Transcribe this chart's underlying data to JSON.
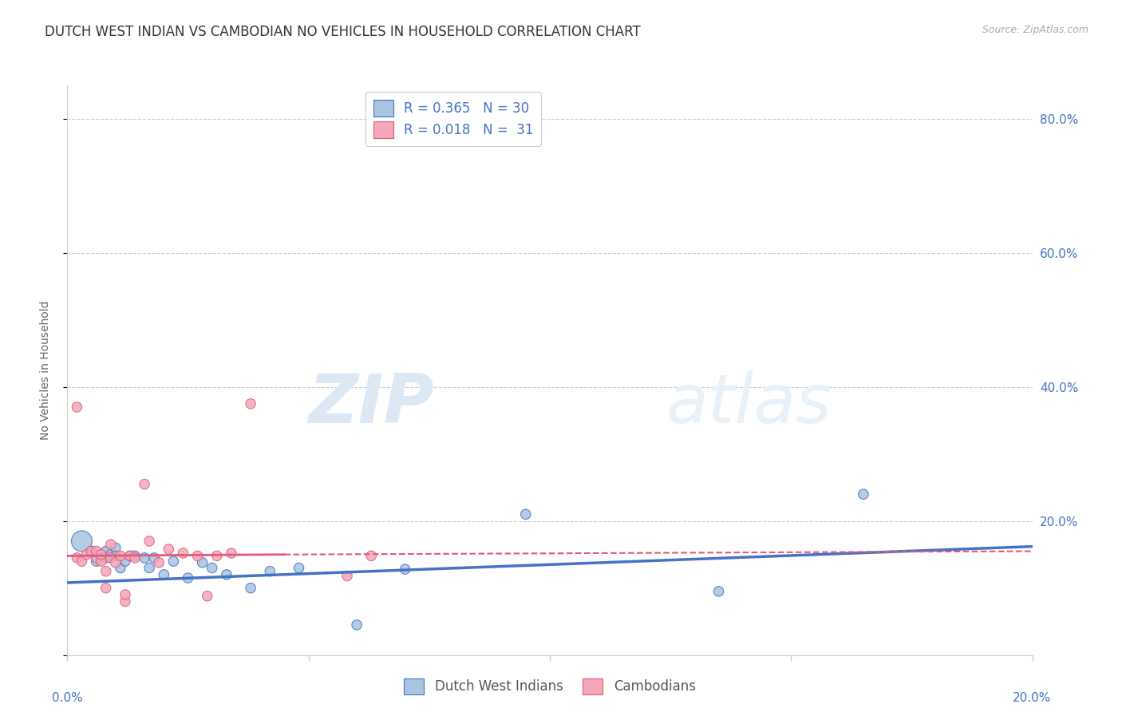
{
  "title": "DUTCH WEST INDIAN VS CAMBODIAN NO VEHICLES IN HOUSEHOLD CORRELATION CHART",
  "source": "Source: ZipAtlas.com",
  "ylabel": "No Vehicles in Household",
  "blue_color": "#a8c4e0",
  "blue_line_color": "#4472c4",
  "pink_color": "#f4a7b9",
  "pink_line_color": "#e05a7a",
  "legend_blue_label": "R = 0.365   N = 30",
  "legend_pink_label": "R = 0.018   N =  31",
  "xlim": [
    0.0,
    0.2
  ],
  "ylim": [
    0.0,
    0.85
  ],
  "ytick_vals": [
    0.0,
    0.2,
    0.4,
    0.6,
    0.8
  ],
  "ytick_labels_right": [
    "",
    "20.0%",
    "40.0%",
    "60.0%",
    "80.0%"
  ],
  "grid_color": "#cccccc",
  "background_color": "#ffffff",
  "title_fontsize": 12,
  "axis_label_fontsize": 10,
  "tick_fontsize": 11,
  "tick_color": "#4472c4",
  "legend_fontsize": 12,
  "blue_scatter_x": [
    0.003,
    0.005,
    0.006,
    0.007,
    0.008,
    0.008,
    0.009,
    0.01,
    0.01,
    0.011,
    0.012,
    0.013,
    0.014,
    0.016,
    0.017,
    0.018,
    0.02,
    0.022,
    0.025,
    0.028,
    0.03,
    0.033,
    0.038,
    0.042,
    0.048,
    0.06,
    0.07,
    0.095,
    0.135,
    0.165
  ],
  "blue_scatter_y": [
    0.17,
    0.155,
    0.14,
    0.15,
    0.155,
    0.145,
    0.15,
    0.16,
    0.148,
    0.13,
    0.14,
    0.148,
    0.148,
    0.145,
    0.13,
    0.145,
    0.12,
    0.14,
    0.115,
    0.138,
    0.13,
    0.12,
    0.1,
    0.125,
    0.13,
    0.045,
    0.128,
    0.21,
    0.095,
    0.24
  ],
  "blue_scatter_size": [
    350,
    80,
    80,
    80,
    80,
    80,
    80,
    80,
    80,
    80,
    80,
    80,
    80,
    80,
    80,
    80,
    80,
    80,
    80,
    80,
    80,
    80,
    80,
    80,
    80,
    80,
    80,
    80,
    80,
    80
  ],
  "pink_scatter_x": [
    0.002,
    0.003,
    0.004,
    0.005,
    0.006,
    0.006,
    0.007,
    0.007,
    0.008,
    0.008,
    0.009,
    0.009,
    0.01,
    0.011,
    0.012,
    0.012,
    0.013,
    0.014,
    0.016,
    0.017,
    0.019,
    0.021,
    0.024,
    0.027,
    0.029,
    0.031,
    0.034,
    0.038,
    0.058,
    0.063,
    0.002
  ],
  "pink_scatter_y": [
    0.145,
    0.14,
    0.15,
    0.155,
    0.145,
    0.155,
    0.14,
    0.15,
    0.1,
    0.125,
    0.165,
    0.145,
    0.138,
    0.148,
    0.08,
    0.09,
    0.148,
    0.145,
    0.255,
    0.17,
    0.138,
    0.158,
    0.152,
    0.148,
    0.088,
    0.148,
    0.152,
    0.375,
    0.118,
    0.148,
    0.37
  ],
  "pink_scatter_size": [
    80,
    80,
    80,
    80,
    80,
    80,
    80,
    80,
    80,
    80,
    80,
    80,
    80,
    80,
    80,
    80,
    80,
    80,
    80,
    80,
    80,
    80,
    80,
    80,
    80,
    80,
    80,
    80,
    80,
    80,
    80
  ],
  "blue_trend_x0": 0.0,
  "blue_trend_x1": 0.2,
  "blue_trend_y0": 0.108,
  "blue_trend_y1": 0.162,
  "pink_trend_solid_x0": 0.0,
  "pink_trend_solid_x1": 0.045,
  "pink_trend_solid_y0": 0.148,
  "pink_trend_solid_y1": 0.15,
  "pink_trend_dashed_x0": 0.045,
  "pink_trend_dashed_x1": 0.2,
  "pink_trend_dashed_y0": 0.15,
  "pink_trend_dashed_y1": 0.155,
  "watermark_zip": "ZIP",
  "watermark_atlas": "atlas"
}
